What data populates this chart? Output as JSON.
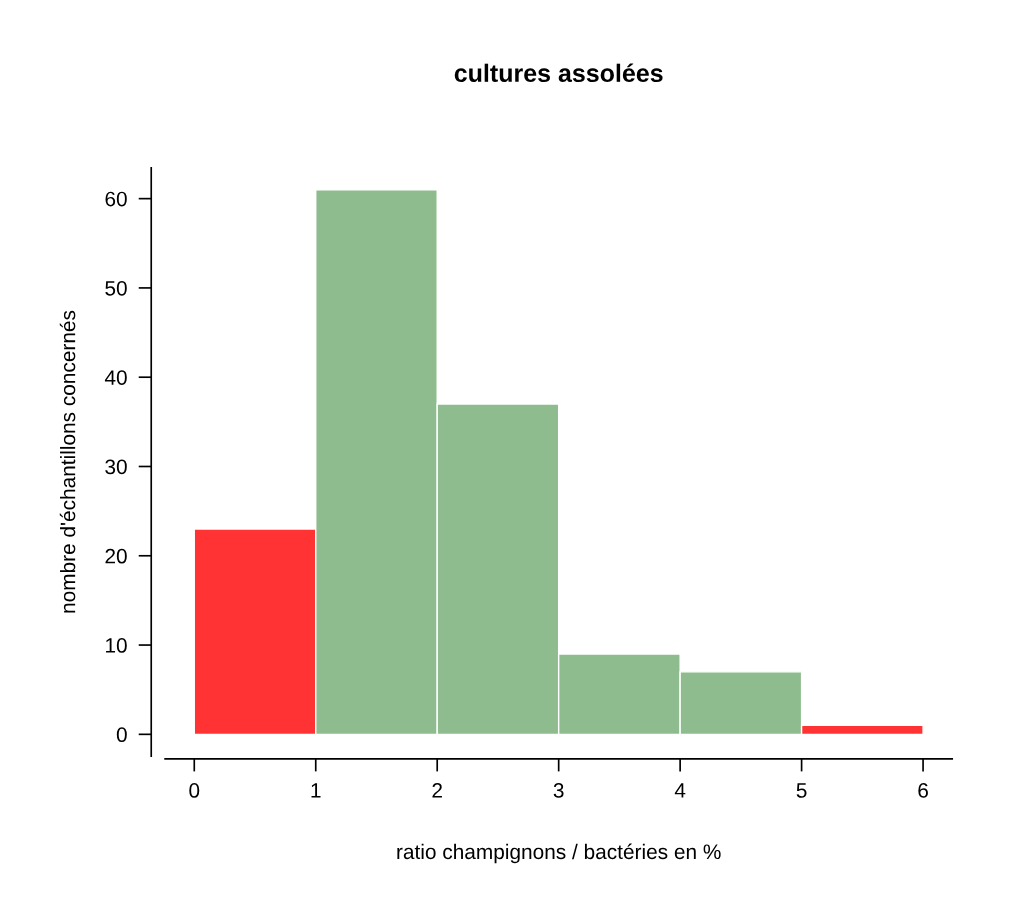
{
  "chart_data": {
    "type": "histogram",
    "title": "cultures assolées",
    "xlabel": "ratio champignons / bactéries en %",
    "ylabel": "nombre d'échantillons concernés",
    "bins": [
      0,
      1,
      2,
      3,
      4,
      5,
      6
    ],
    "values": [
      23,
      61,
      37,
      9,
      7,
      1
    ],
    "colors": [
      "#ff3333",
      "#8fbc8f",
      "#8fbc8f",
      "#8fbc8f",
      "#8fbc8f",
      "#ff3333"
    ],
    "xlim": [
      -0.24,
      6.24
    ],
    "ylim": [
      -2.44,
      63.44
    ],
    "xticks": [
      0,
      1,
      2,
      3,
      4,
      5,
      6
    ],
    "yticks": [
      0,
      10,
      20,
      30,
      40,
      50,
      60
    ],
    "grid": false,
    "legend": false
  }
}
